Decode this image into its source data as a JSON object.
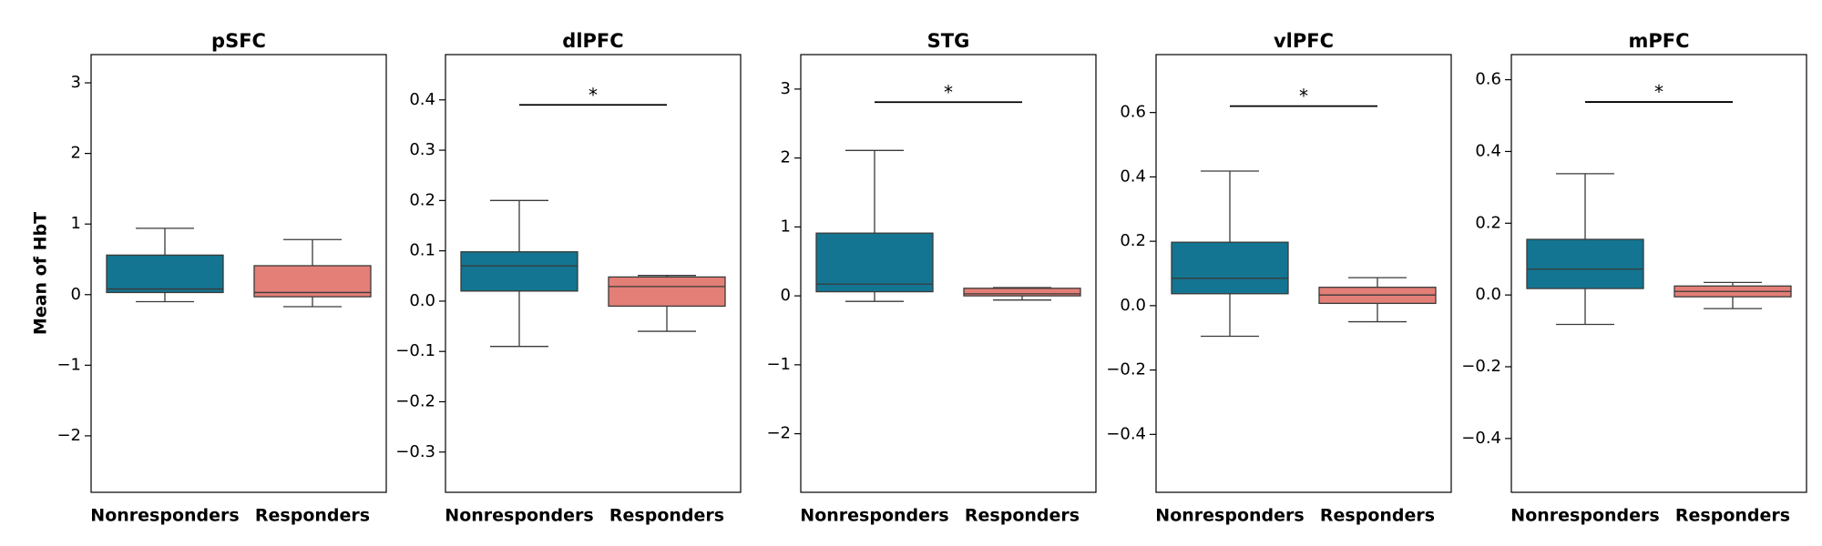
{
  "chart_data": [
    {
      "type": "box",
      "title": "pSFC",
      "ylabel": "Mean of HbT",
      "categories": [
        "Nonresponders",
        "Responders"
      ],
      "ylim": [
        -2.8,
        3.4
      ],
      "yticks": [
        -2,
        -1,
        0,
        1,
        2,
        3
      ],
      "yticklabels": [
        "−2",
        "−1",
        "0",
        "1",
        "2",
        "3"
      ],
      "boxes": [
        {
          "whislo": -0.1,
          "q1": 0.03,
          "med": 0.08,
          "q3": 0.56,
          "whishi": 0.94,
          "color": "#137591"
        },
        {
          "whislo": -0.17,
          "q1": -0.03,
          "med": 0.03,
          "q3": 0.41,
          "whishi": 0.78,
          "color": "#e37f77"
        }
      ],
      "significance": null
    },
    {
      "type": "box",
      "title": "dlPFC",
      "ylabel": "",
      "categories": [
        "Nonresponders",
        "Responders"
      ],
      "ylim": [
        -0.38,
        0.49
      ],
      "yticks": [
        -0.3,
        -0.2,
        -0.1,
        0.0,
        0.1,
        0.2,
        0.3,
        0.4
      ],
      "yticklabels": [
        "−0.3",
        "−0.2",
        "−0.1",
        "0.0",
        "0.1",
        "0.2",
        "0.3",
        "0.4"
      ],
      "boxes": [
        {
          "whislo": -0.09,
          "q1": 0.02,
          "med": 0.07,
          "q3": 0.098,
          "whishi": 0.2,
          "color": "#137591"
        },
        {
          "whislo": -0.06,
          "q1": -0.01,
          "med": 0.029,
          "q3": 0.048,
          "whishi": 0.051,
          "color": "#e37f77"
        }
      ],
      "significance": {
        "label": "*",
        "y": 0.39
      }
    },
    {
      "type": "box",
      "title": "STG",
      "ylabel": "",
      "categories": [
        "Nonresponders",
        "Responders"
      ],
      "ylim": [
        -2.85,
        3.5
      ],
      "yticks": [
        -2,
        -1,
        0,
        1,
        2,
        3
      ],
      "yticklabels": [
        "−2",
        "−1",
        "0",
        "1",
        "2",
        "3"
      ],
      "boxes": [
        {
          "whislo": -0.08,
          "q1": 0.06,
          "med": 0.17,
          "q3": 0.91,
          "whishi": 2.11,
          "color": "#137591"
        },
        {
          "whislo": -0.06,
          "q1": 0.0,
          "med": 0.03,
          "q3": 0.11,
          "whishi": 0.12,
          "color": "#e37f77"
        }
      ],
      "significance": {
        "label": "*",
        "y": 2.81
      }
    },
    {
      "type": "box",
      "title": "vlPFC",
      "ylabel": "",
      "categories": [
        "Nonresponders",
        "Responders"
      ],
      "ylim": [
        -0.58,
        0.78
      ],
      "yticks": [
        -0.4,
        -0.2,
        0.0,
        0.2,
        0.4,
        0.6
      ],
      "yticklabels": [
        "−0.4",
        "−0.2",
        "0.0",
        "0.2",
        "0.4",
        "0.6"
      ],
      "boxes": [
        {
          "whislo": -0.095,
          "q1": 0.037,
          "med": 0.085,
          "q3": 0.197,
          "whishi": 0.418,
          "color": "#137591"
        },
        {
          "whislo": -0.05,
          "q1": 0.007,
          "med": 0.033,
          "q3": 0.057,
          "whishi": 0.087,
          "color": "#e37f77"
        }
      ],
      "significance": {
        "label": "*",
        "y": 0.62
      }
    },
    {
      "type": "box",
      "title": "mPFC",
      "ylabel": "",
      "categories": [
        "Nonresponders",
        "Responders"
      ],
      "ylim": [
        -0.55,
        0.67
      ],
      "yticks": [
        -0.4,
        -0.2,
        0.0,
        0.2,
        0.4,
        0.6
      ],
      "yticklabels": [
        "−0.4",
        "−0.2",
        "0.0",
        "0.2",
        "0.4",
        "0.6"
      ],
      "boxes": [
        {
          "whislo": -0.082,
          "q1": 0.018,
          "med": 0.072,
          "q3": 0.155,
          "whishi": 0.338,
          "color": "#137591"
        },
        {
          "whislo": -0.038,
          "q1": -0.005,
          "med": 0.01,
          "q3": 0.025,
          "whishi": 0.035,
          "color": "#e37f77"
        }
      ],
      "significance": {
        "label": "*",
        "y": 0.538
      }
    }
  ]
}
